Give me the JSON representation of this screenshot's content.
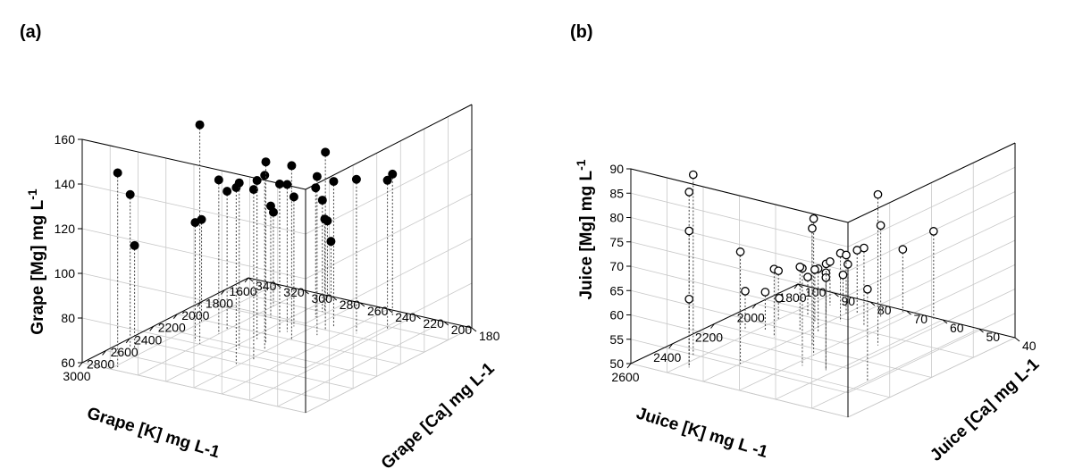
{
  "chart_data": [
    {
      "panel_label": "(a)",
      "type": "scatter3d",
      "marker": "filled",
      "xlabel": "Grape [K] mg L-1",
      "ylabel": "Grape [Ca] mg L-1",
      "zlabel": "Grape [Mg] mg L",
      "zlabel_sup": "-1",
      "xlim": [
        1600,
        3000
      ],
      "ylim": [
        180,
        340
      ],
      "zlim": [
        60,
        160
      ],
      "x_ticks": [
        "3000",
        "2800",
        "2600",
        "2400",
        "2200",
        "2000",
        "1800",
        "1600"
      ],
      "y_ticks": [
        "180",
        "200",
        "220",
        "240",
        "260",
        "280",
        "300",
        "320",
        "340"
      ],
      "z_ticks": [
        "60",
        "80",
        "100",
        "120",
        "140",
        "160"
      ],
      "points": [
        {
          "x": 2960,
          "y": 318,
          "z": 147
        },
        {
          "x": 2690,
          "y": 332,
          "z": 128
        },
        {
          "x": 2700,
          "y": 328,
          "z": 106
        },
        {
          "x": 2620,
          "y": 262,
          "z": 139
        },
        {
          "x": 2520,
          "y": 258,
          "z": 136
        },
        {
          "x": 2480,
          "y": 300,
          "z": 158
        },
        {
          "x": 2460,
          "y": 305,
          "z": 113
        },
        {
          "x": 2430,
          "y": 276,
          "z": 134
        },
        {
          "x": 2380,
          "y": 262,
          "z": 138
        },
        {
          "x": 2320,
          "y": 300,
          "z": 129
        },
        {
          "x": 2300,
          "y": 268,
          "z": 141
        },
        {
          "x": 2280,
          "y": 276,
          "z": 131
        },
        {
          "x": 2250,
          "y": 300,
          "z": 122
        },
        {
          "x": 2230,
          "y": 320,
          "z": 106
        },
        {
          "x": 2200,
          "y": 258,
          "z": 138
        },
        {
          "x": 2160,
          "y": 270,
          "z": 127
        },
        {
          "x": 2120,
          "y": 268,
          "z": 126
        },
        {
          "x": 2080,
          "y": 250,
          "z": 131
        },
        {
          "x": 2040,
          "y": 270,
          "z": 118
        },
        {
          "x": 2010,
          "y": 250,
          "z": 140
        },
        {
          "x": 2000,
          "y": 290,
          "z": 110
        },
        {
          "x": 1960,
          "y": 232,
          "z": 129
        },
        {
          "x": 1940,
          "y": 250,
          "z": 125
        },
        {
          "x": 1880,
          "y": 268,
          "z": 118
        },
        {
          "x": 1840,
          "y": 220,
          "z": 127
        },
        {
          "x": 1860,
          "y": 300,
          "z": 102
        },
        {
          "x": 1800,
          "y": 270,
          "z": 110
        },
        {
          "x": 1780,
          "y": 270,
          "z": 101
        },
        {
          "x": 1680,
          "y": 230,
          "z": 124
        },
        {
          "x": 1640,
          "y": 280,
          "z": 95
        },
        {
          "x": 1610,
          "y": 280,
          "z": 85
        }
      ]
    },
    {
      "panel_label": "(b)",
      "type": "scatter3d",
      "marker": "open",
      "xlabel": "Juice [K] mg L -1",
      "ylabel": "Juice [Ca] mg L-1",
      "zlabel": "Juice [Mg] mg L",
      "zlabel_sup": "-1",
      "xlim": [
        1800,
        2700
      ],
      "ylim": [
        40,
        100
      ],
      "zlim": [
        50,
        90
      ],
      "x_ticks": [
        "2600",
        "2400",
        "2200",
        "2000",
        "1800"
      ],
      "y_ticks": [
        "40",
        "50",
        "60",
        "70",
        "80",
        "90",
        "100"
      ],
      "z_ticks": [
        "50",
        "55",
        "60",
        "65",
        "70",
        "75",
        "80",
        "85",
        "90"
      ],
      "points": [
        {
          "x": 2620,
          "y": 88,
          "z": 86
        },
        {
          "x": 2620,
          "y": 88,
          "z": 78
        },
        {
          "x": 2620,
          "y": 88,
          "z": 64
        },
        {
          "x": 2520,
          "y": 92,
          "z": 87
        },
        {
          "x": 2500,
          "y": 80,
          "z": 73
        },
        {
          "x": 2400,
          "y": 68,
          "z": 70
        },
        {
          "x": 2390,
          "y": 62,
          "z": 70
        },
        {
          "x": 2390,
          "y": 62,
          "z": 69
        },
        {
          "x": 2400,
          "y": 50,
          "z": 69
        },
        {
          "x": 2300,
          "y": 70,
          "z": 78
        },
        {
          "x": 2230,
          "y": 74,
          "z": 74
        },
        {
          "x": 2240,
          "y": 92,
          "z": 58
        },
        {
          "x": 2240,
          "y": 84,
          "z": 64
        },
        {
          "x": 2210,
          "y": 88,
          "z": 58
        },
        {
          "x": 2110,
          "y": 62,
          "z": 81
        },
        {
          "x": 2140,
          "y": 82,
          "z": 63
        },
        {
          "x": 2120,
          "y": 78,
          "z": 63
        },
        {
          "x": 2100,
          "y": 90,
          "z": 60
        },
        {
          "x": 2060,
          "y": 82,
          "z": 61
        },
        {
          "x": 2020,
          "y": 86,
          "z": 58
        },
        {
          "x": 2000,
          "y": 78,
          "z": 64
        },
        {
          "x": 1990,
          "y": 72,
          "z": 66
        },
        {
          "x": 1960,
          "y": 78,
          "z": 61
        },
        {
          "x": 1960,
          "y": 84,
          "z": 60
        },
        {
          "x": 1930,
          "y": 80,
          "z": 62
        },
        {
          "x": 1900,
          "y": 72,
          "z": 69
        },
        {
          "x": 1910,
          "y": 78,
          "z": 63
        },
        {
          "x": 1900,
          "y": 86,
          "z": 59
        },
        {
          "x": 1940,
          "y": 98,
          "z": 50
        },
        {
          "x": 1820,
          "y": 70,
          "z": 63
        },
        {
          "x": 1830,
          "y": 86,
          "z": 55
        },
        {
          "x": 1810,
          "y": 62,
          "z": 68
        }
      ]
    }
  ]
}
